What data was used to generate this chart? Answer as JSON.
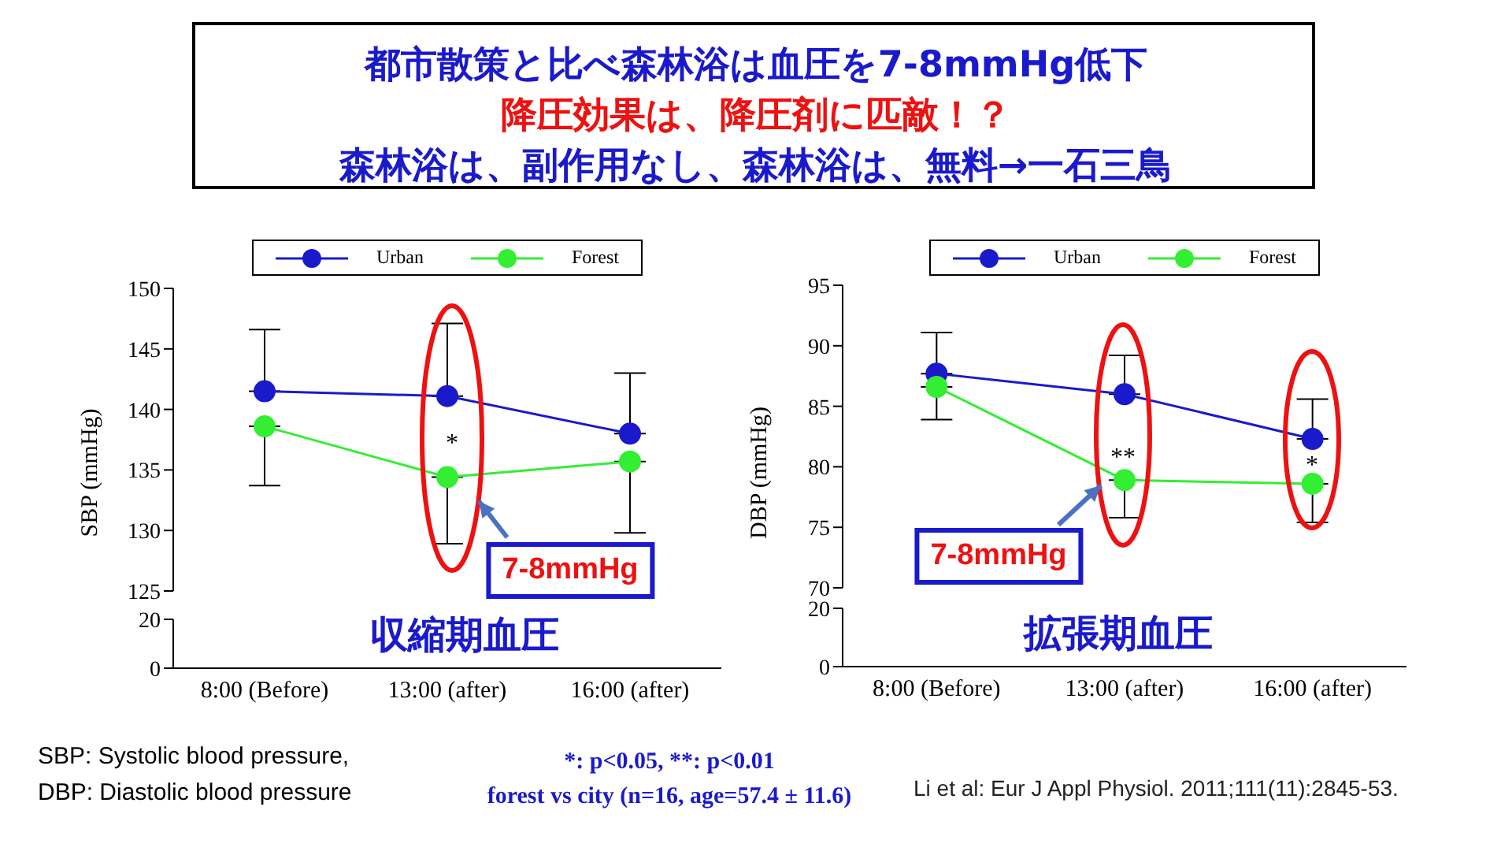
{
  "chart_data": [
    {
      "type": "line",
      "title": "都市散策と比べ森林浴は血圧を7-8mmHg低下",
      "subtitle": "降圧効果は、降圧剤に匹敵！？",
      "ylabel": "SBP (mmHg)",
      "categories": [
        null,
        null,
        null
      ],
      "series": [
        {
          "name": "Urban",
          "color": "#1a1acc",
          "values": [
            141.5,
            141.1,
            138.0
          ],
          "errors": [
            [
              141.5,
              146.6
            ],
            [
              141.1,
              147.1
            ],
            [
              138.0,
              143.0
            ]
          ]
        },
        {
          "name": "Forest",
          "color": "#33ee33",
          "values": [
            138.6,
            134.4,
            135.7
          ],
          "errors": [
            [
              133.7,
              138.6
            ],
            [
              128.9,
              134.4
            ],
            [
              129.8,
              135.7
            ]
          ]
        }
      ],
      "ylim": [
        125,
        150
      ],
      "yticks": [
        125,
        130,
        135,
        140,
        145,
        150
      ],
      "tick_labels": "y",
      "legend": "top",
      "marker": "circle",
      "annotations": [
        "森林浴は、副作用なし、森林浴は、無料→一石三鳥",
        "*",
        "7-8mmHg",
        "収縮期血圧",
        "SBP: Systolic blood pressure,",
        "DBP: Diastolic blood pressure"
      ]
    },
    {
      "type": "line",
      "categories": [
        "8:00 (Before)",
        "13:00 (after)",
        "16:00 (after)"
      ],
      "ylim": [
        0,
        20
      ],
      "yticks": [
        0,
        20
      ]
    },
    {
      "type": "line",
      "ylabel": "DBP (mmHg)",
      "categories": [
        null,
        null,
        null
      ],
      "series": [
        {
          "name": "Urban",
          "color": "#1a1acc",
          "values": [
            87.7,
            86.0,
            82.3
          ],
          "errors": [
            [
              87.7,
              91.1
            ],
            [
              86.0,
              89.2
            ],
            [
              82.3,
              85.6
            ]
          ]
        },
        {
          "name": "Forest",
          "color": "#33ee33",
          "values": [
            86.6,
            78.9,
            78.6
          ],
          "errors": [
            [
              83.9,
              86.6
            ],
            [
              75.8,
              78.9
            ],
            [
              75.4,
              78.6
            ]
          ]
        }
      ],
      "ylim": [
        70,
        95
      ],
      "yticks": [
        70,
        75,
        80,
        85,
        90,
        95
      ],
      "tick_labels": "y",
      "legend": "top",
      "marker": "circle",
      "annotations": [
        "**",
        "*",
        "7-8mmHg",
        "拡張期血圧",
        "*: p<0.05, **: p<0.01",
        "forest vs city (n=16, age=57.4 ± 11.6)",
        "Li et al: Eur J Appl Physiol. 2011;111(11):2845-53."
      ]
    },
    {
      "type": "line",
      "categories": [
        "8:00 (Before)",
        "13:00 (after)",
        "16:00 (after)"
      ],
      "ylim": [
        0,
        20
      ],
      "yticks": [
        0,
        20
      ]
    }
  ]
}
